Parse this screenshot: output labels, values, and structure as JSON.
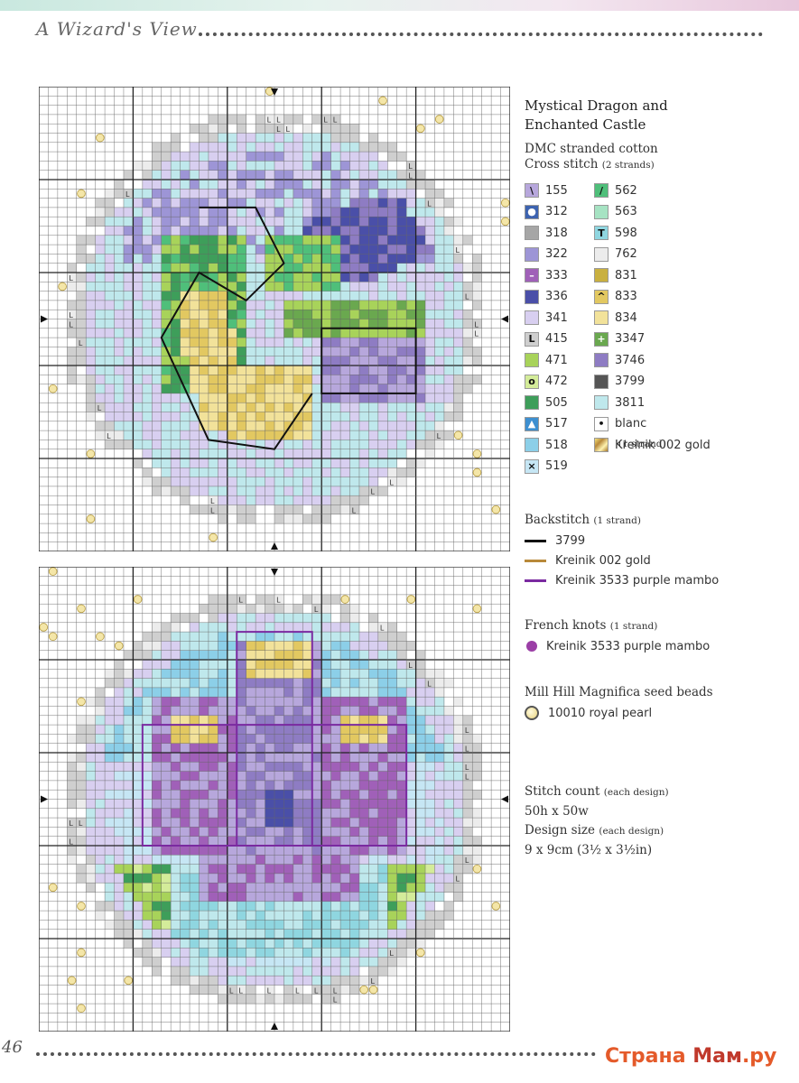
{
  "header": {
    "title": "A Wizard's View"
  },
  "footer": {
    "page_number": "46"
  },
  "watermark": {
    "text_a": "Страна",
    "text_b": "Мам",
    "text_c": ".ру"
  },
  "charts": [
    {
      "id": "dragon",
      "kind": "dragon"
    },
    {
      "id": "castle",
      "kind": "castle"
    }
  ],
  "key": {
    "title_line1": "Mystical Dragon and",
    "title_line2": "Enchanted Castle",
    "thread_brand": "DMC stranded cotton",
    "cross_label": "Cross stitch",
    "cross_strands": "(2 strands)",
    "threads": [
      {
        "code": "155",
        "color": "#b7a7dc",
        "symbol": "\\"
      },
      {
        "code": "312",
        "color": "#3d63b0",
        "symbol": "●"
      },
      {
        "code": "318",
        "color": "#a6a6a6",
        "symbol": ""
      },
      {
        "code": "322",
        "color": "#9d95d6",
        "symbol": ""
      },
      {
        "code": "333",
        "color": "#a060b8",
        "symbol": "–"
      },
      {
        "code": "336",
        "color": "#4a4fa8",
        "symbol": ""
      },
      {
        "code": "341",
        "color": "#d8cff0",
        "symbol": ""
      },
      {
        "code": "415",
        "color": "#cfcfcf",
        "symbol": "L"
      },
      {
        "code": "471",
        "color": "#a8d35a",
        "symbol": ""
      },
      {
        "code": "472",
        "color": "#d4ec9a",
        "symbol": "o"
      },
      {
        "code": "505",
        "color": "#3e9e5a",
        "symbol": ""
      },
      {
        "code": "517",
        "color": "#3d8fd0",
        "symbol": "▲"
      },
      {
        "code": "518",
        "color": "#8ccfe8",
        "symbol": ""
      },
      {
        "code": "519",
        "color": "#c6e6f4",
        "symbol": "×"
      },
      {
        "code": "562",
        "color": "#4fbf7a",
        "symbol": "/"
      },
      {
        "code": "563",
        "color": "#a6e3c3",
        "symbol": ""
      },
      {
        "code": "598",
        "color": "#8fd6e0",
        "symbol": "T"
      },
      {
        "code": "762",
        "color": "#ececec",
        "symbol": ""
      },
      {
        "code": "831",
        "color": "#c9b040",
        "symbol": ""
      },
      {
        "code": "833",
        "color": "#e2c861",
        "symbol": "^"
      },
      {
        "code": "834",
        "color": "#f2e29a",
        "symbol": ""
      },
      {
        "code": "3347",
        "color": "#6aa84f",
        "symbol": "+"
      },
      {
        "code": "3746",
        "color": "#8e7cc3",
        "symbol": ""
      },
      {
        "code": "3799",
        "color": "#555555",
        "symbol": ""
      },
      {
        "code": "3811",
        "color": "#bfe8ec",
        "symbol": ""
      },
      {
        "code": "blanc",
        "color": "#ffffff",
        "symbol": "•"
      },
      {
        "code": "Kreinik 002 gold",
        "color": "#d9b64b",
        "symbol": ""
      }
    ],
    "kreinik_note": "(1 strand)",
    "backstitch": {
      "label": "Backstitch",
      "strands": "(1 strand)",
      "items": [
        {
          "name": "3799",
          "color": "#111111"
        },
        {
          "name": "Kreinik 002 gold",
          "color": "#b8893a"
        },
        {
          "name": "Kreinik 3533 purple mambo",
          "color": "#7a2aa0"
        }
      ]
    },
    "french_knots": {
      "label": "French knots",
      "strands": "(1 strand)",
      "item": "Kreinik 3533 purple mambo",
      "color": "#9b3fa6"
    },
    "beads": {
      "label": "Mill Hill Magnifica seed beads",
      "item": "10010 royal pearl"
    },
    "stitch_count_label": "Stitch count",
    "stitch_count_note": "(each design)",
    "stitch_count": "50h x 50w",
    "design_size_label": "Design size",
    "design_size_note": "(each design)",
    "design_size": "9 x 9cm (3½ x 3½in)"
  }
}
